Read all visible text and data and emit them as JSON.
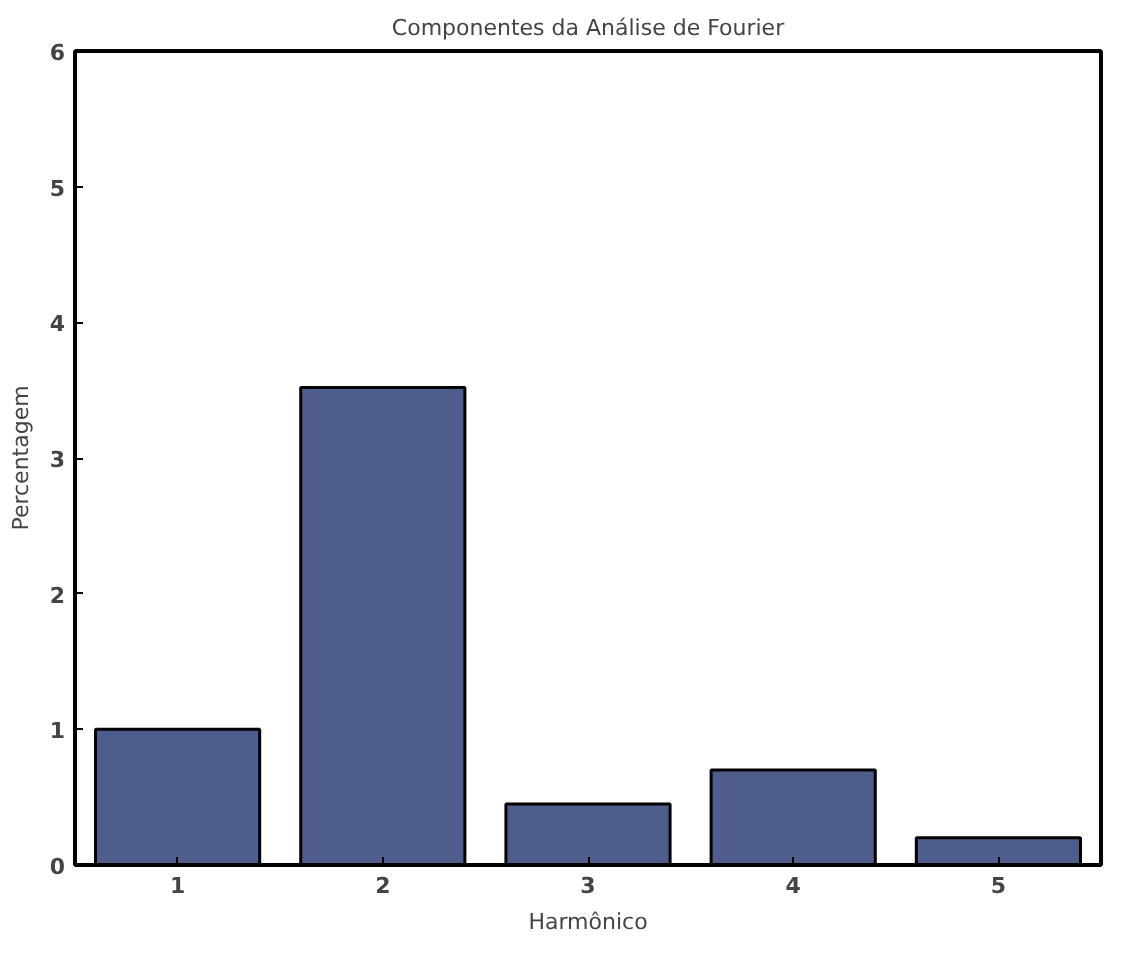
{
  "chart_data": {
    "type": "bar",
    "title": "Componentes da Análise de Fourier",
    "xlabel": "Harmônico",
    "ylabel": "Percentagem",
    "categories": [
      "1",
      "2",
      "3",
      "4",
      "5"
    ],
    "values": [
      1.0,
      3.52,
      0.45,
      0.7,
      0.2
    ],
    "color": "#4f5d8c",
    "ylim": [
      0,
      6
    ],
    "yticks": [
      0,
      1,
      2,
      3,
      4,
      5,
      6
    ],
    "grid": false
  }
}
